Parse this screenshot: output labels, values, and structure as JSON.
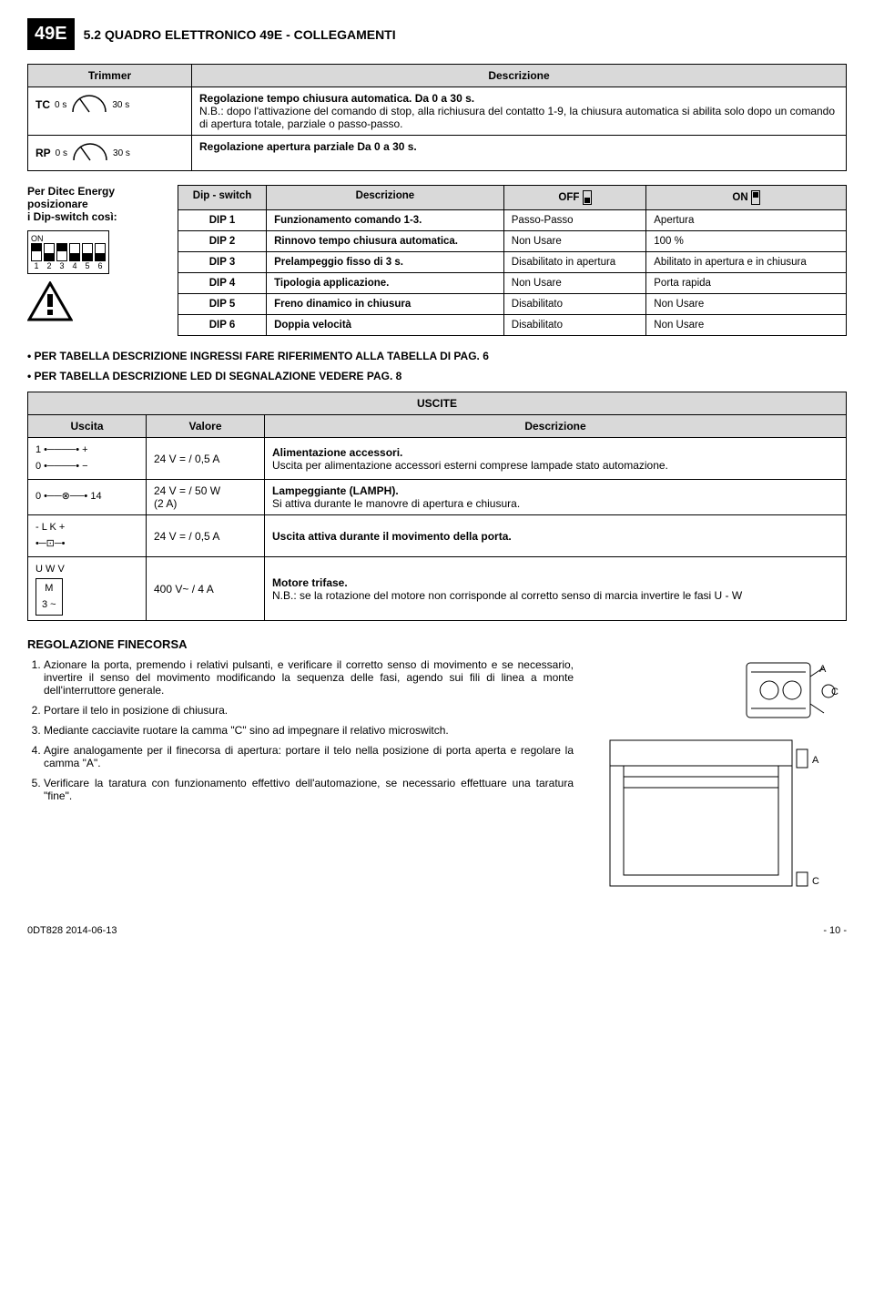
{
  "header": {
    "badge": "49E",
    "title": "5.2 QUADRO ELETTRONICO 49E - COLLEGAMENTI"
  },
  "trimmer_table": {
    "headers": [
      "Trimmer",
      "Descrizione"
    ],
    "rows": [
      {
        "label": "TC",
        "min": "0 s",
        "max": "30 s",
        "desc_title": "Regolazione tempo chiusura automatica. Da 0 a 30 s.",
        "desc_body": "N.B.: dopo l'attivazione del comando di stop, alla richiusura del contatto 1-9, la chiusura automatica si abilita solo dopo un comando di apertura totale, parziale o passo-passo."
      },
      {
        "label": "RP",
        "min": "0 s",
        "max": "30 s",
        "desc_title": "Regolazione apertura parziale Da 0 a 30 s.",
        "desc_body": ""
      }
    ]
  },
  "dip_left": {
    "title": "Per Ditec Energy posizionare\ni Dip-switch così:",
    "on_label": "ON",
    "positions": [
      "up",
      "down",
      "up",
      "down",
      "down",
      "down"
    ],
    "nums": [
      "1",
      "2",
      "3",
      "4",
      "5",
      "6"
    ]
  },
  "dip_table": {
    "headers": [
      "Dip - switch",
      "Descrizione",
      "OFF",
      "ON"
    ],
    "rows": [
      {
        "c1": "DIP 1",
        "c2": "Funzionamento comando 1-3.",
        "c3": "Passo-Passo",
        "c4": "Apertura"
      },
      {
        "c1": "DIP 2",
        "c2": "Rinnovo tempo chiusura automatica.",
        "c3": "Non Usare",
        "c4": "100 %"
      },
      {
        "c1": "DIP 3",
        "c2": "Prelampeggio fisso di 3 s.",
        "c3": "Disabilitato in apertura",
        "c4": "Abilitato in apertura e in chiusura"
      },
      {
        "c1": "DIP 4",
        "c2": "Tipologia applicazione.",
        "c3": "Non Usare",
        "c4": "Porta rapida"
      },
      {
        "c1": "DIP 5",
        "c2": "Freno dinamico in chiusura",
        "c3": "Disabilitato",
        "c4": "Non Usare"
      },
      {
        "c1": "DIP 6",
        "c2": "Doppia velocità",
        "c3": "Disabilitato",
        "c4": "Non Usare"
      }
    ]
  },
  "bullets": {
    "b1": "• PER TABELLA DESCRIZIONE INGRESSI FARE RIFERIMENTO ALLA TABELLA DI PAG. 6",
    "b2": "• PER TABELLA DESCRIZIONE LED DI SEGNALAZIONE VEDERE PAG. 8"
  },
  "uscite_table": {
    "main_header": "USCITE",
    "sub_headers": [
      "Uscita",
      "Valore",
      "Descrizione"
    ],
    "rows": [
      {
        "uscita_lines": [
          "1 •────• +",
          "0 •────• −"
        ],
        "valore": "24 V = / 0,5 A",
        "desc_title": "Alimentazione accessori.",
        "desc_body": "Uscita per alimentazione accessori esterni comprese lampade stato automazione."
      },
      {
        "uscita_lines": [
          "0 •──⊗──• 14"
        ],
        "valore": "24 V = / 50 W\n(2 A)",
        "desc_title": "Lampeggiante (LAMPH).",
        "desc_body": "Si attiva durante le manovre di apertura e chiusura."
      },
      {
        "uscita_lines": [
          "- L K +",
          "•─⊡─•"
        ],
        "valore": "24 V = / 0,5 A",
        "desc_title": "Uscita attiva durante il movimento della porta.",
        "desc_body": ""
      },
      {
        "uscita_lines": [
          "U W V"
        ],
        "motor": {
          "line1": "M",
          "line2": "3 ~"
        },
        "valore": "400 V~ / 4 A",
        "desc_title": "Motore trifase.",
        "desc_body": "N.B.: se la rotazione del motore non corrisponde al corretto senso di marcia invertire le fasi U - W"
      }
    ]
  },
  "regolazione": {
    "title": "REGOLAZIONE FINECORSA",
    "items": [
      "Azionare la porta, premendo i relativi pulsanti, e verificare il corretto senso di movimento e se necessario, invertire il senso del movimento modificando la sequenza delle fasi, agendo sui fili di linea a monte dell'interruttore generale.",
      "Portare il telo in posizione di chiusura.",
      "Mediante cacciavite ruotare la camma \"C\" sino ad impegnare il relativo microswitch.",
      "Agire analogamente per il finecorsa di apertura: portare il telo nella posizione di porta aperta e regolare la camma \"A\".",
      "Verificare la taratura con funzionamento effettivo dell'automazione, se necessario effettuare una taratura \"fine\"."
    ],
    "labels": {
      "A": "A",
      "C": "C"
    }
  },
  "footer": {
    "left": "0DT828  2014-06-13",
    "right": "- 10 -"
  }
}
